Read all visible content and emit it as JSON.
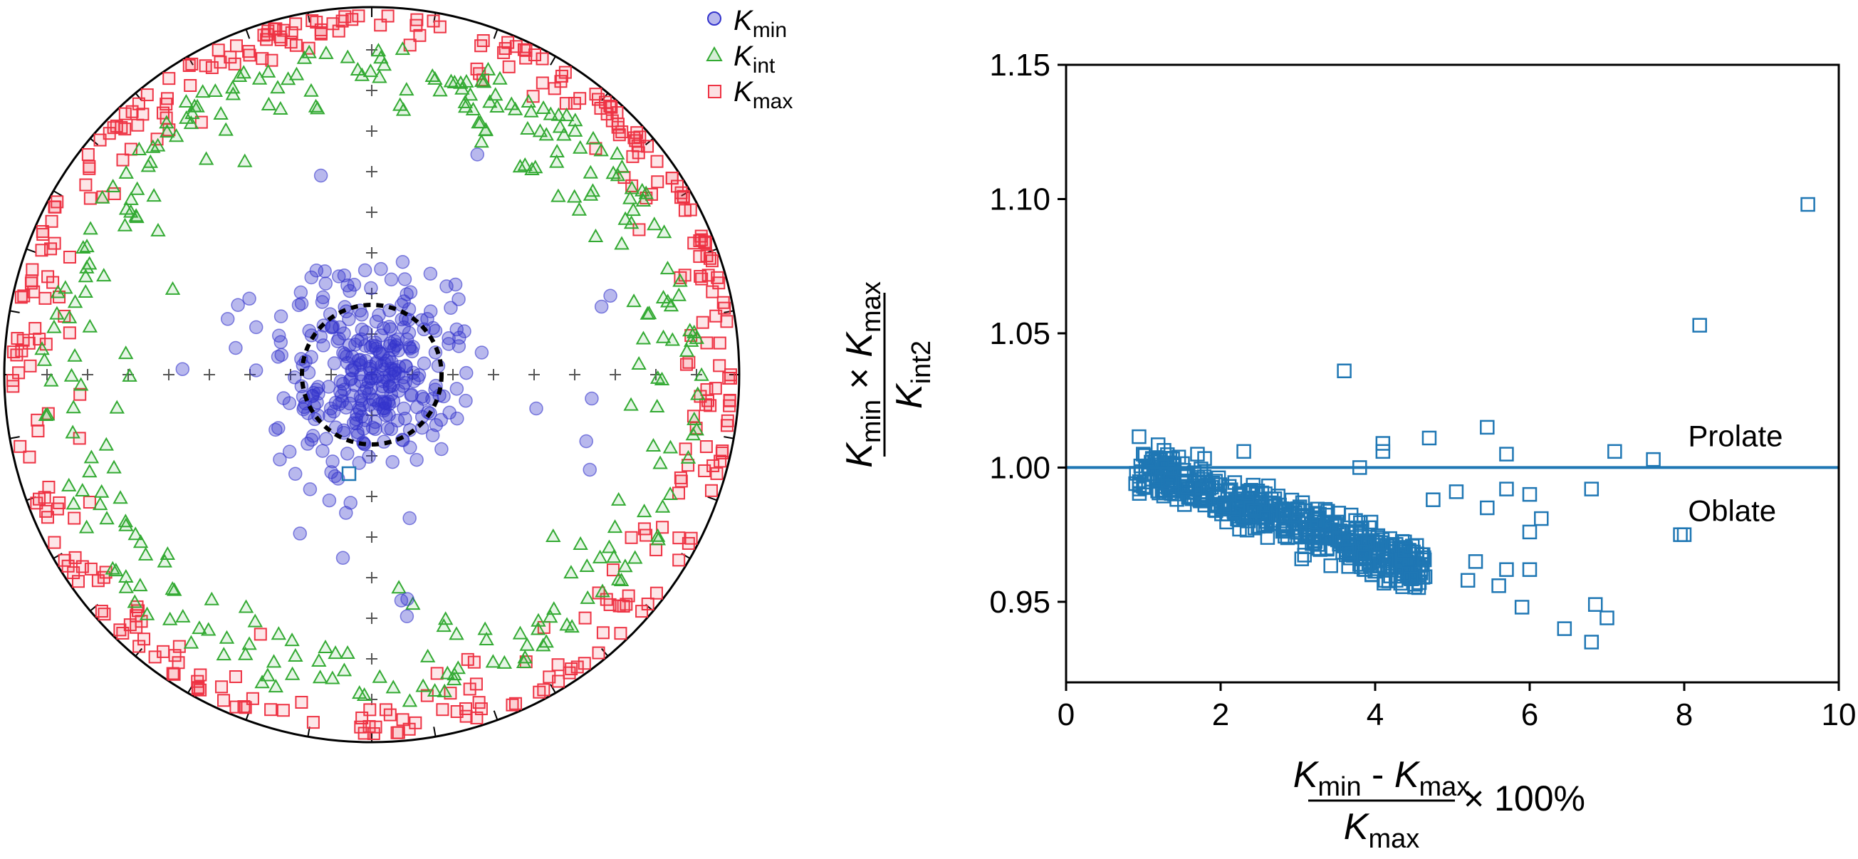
{
  "stereonet": {
    "type": "scatter",
    "legend": [
      {
        "symbol": "K",
        "subscript": "min",
        "color": "#3333cc",
        "marker": "circle"
      },
      {
        "symbol": "K",
        "subscript": "int",
        "color": "#33aa33",
        "marker": "triangle"
      },
      {
        "symbol": "K",
        "subscript": "max",
        "color": "#ee3344",
        "marker": "square"
      }
    ],
    "legend_position": "top-right",
    "confidence_circle": "dotted",
    "grid_marks": "plus"
  },
  "chart_data": {
    "type": "scatter",
    "xlim": [
      0,
      10
    ],
    "ylim": [
      0.92,
      1.15
    ],
    "x_ticks": [
      "0",
      "2",
      "4",
      "6",
      "8",
      "10"
    ],
    "y_ticks": [
      "0.95",
      "1.00",
      "1.05",
      "1.10",
      "1.15"
    ],
    "xlabel": {
      "num_a": "K",
      "num_a_sub": "min",
      "minus": " - ",
      "num_b": "K",
      "num_b_sub": "max",
      "den": "K",
      "den_sub": "max",
      "suffix": "× 100%"
    },
    "ylabel": {
      "num_a": "K",
      "num_a_sub": "min",
      "times": " × ",
      "num_b": "K",
      "num_b_sub": "max",
      "den": "K",
      "den_sub": "int2"
    },
    "reference_line": 1.0,
    "annotations": [
      "Prolate",
      "Oblate"
    ],
    "marker_color": "#1f77b4",
    "outliers": [
      [
        9.6,
        1.098
      ],
      [
        8.2,
        1.053
      ],
      [
        3.6,
        1.036
      ],
      [
        5.45,
        1.015
      ],
      [
        4.7,
        1.011
      ],
      [
        4.1,
        1.009
      ],
      [
        4.1,
        1.006
      ],
      [
        7.1,
        1.006
      ],
      [
        5.7,
        1.005
      ],
      [
        7.6,
        1.003
      ],
      [
        3.8,
        1.0
      ],
      [
        2.3,
        1.006
      ],
      [
        1.7,
        1.005
      ],
      [
        1.1,
        1.002
      ],
      [
        6.8,
        0.992
      ],
      [
        5.05,
        0.991
      ],
      [
        5.7,
        0.992
      ],
      [
        6.0,
        0.99
      ],
      [
        4.75,
        0.988
      ],
      [
        5.45,
        0.985
      ],
      [
        6.15,
        0.981
      ],
      [
        6.0,
        0.976
      ],
      [
        7.95,
        0.975
      ],
      [
        8.0,
        0.975
      ],
      [
        6.0,
        0.962
      ],
      [
        5.9,
        0.948
      ],
      [
        6.85,
        0.949
      ],
      [
        7.0,
        0.944
      ],
      [
        6.45,
        0.94
      ],
      [
        6.8,
        0.935
      ],
      [
        0.9,
        0.994
      ],
      [
        0.95,
        0.992
      ],
      [
        1.0,
        0.993
      ],
      [
        1.35,
        0.995
      ],
      [
        5.3,
        0.965
      ],
      [
        5.7,
        0.962
      ],
      [
        5.2,
        0.958
      ],
      [
        5.6,
        0.956
      ]
    ]
  }
}
